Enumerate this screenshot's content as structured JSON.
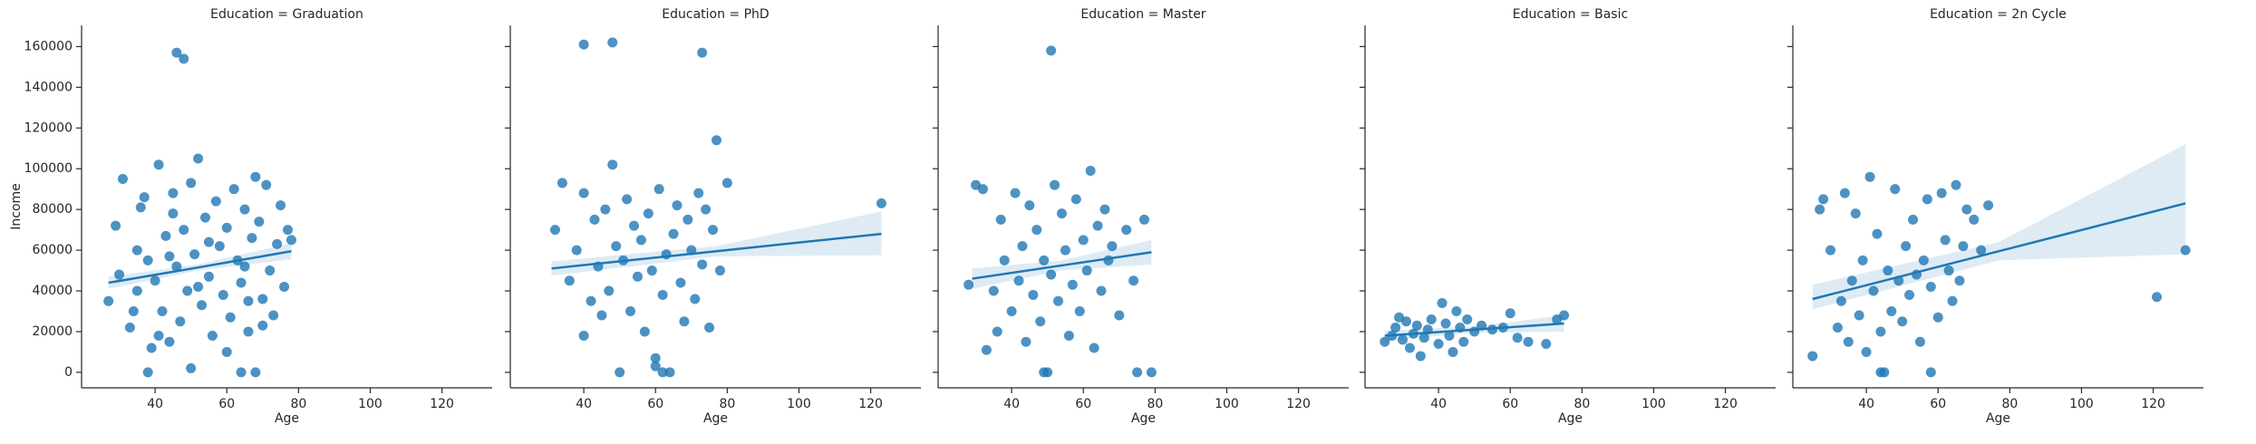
{
  "chart_data": [
    {
      "type": "scatter",
      "title": "Education = Graduation",
      "xlabel": "Age",
      "ylabel": "Income",
      "show_ytick_labels": true,
      "color": "#1f77b4",
      "x": [
        27,
        29,
        31,
        33,
        35,
        36,
        38,
        40,
        41,
        42,
        43,
        44,
        45,
        46,
        47,
        48,
        49,
        50,
        51,
        52,
        53,
        54,
        55,
        56,
        57,
        58,
        59,
        60,
        61,
        62,
        63,
        64,
        65,
        66,
        67,
        68,
        69,
        70,
        71,
        72,
        73,
        74,
        75,
        76,
        77,
        78,
        30,
        34,
        37,
        39,
        44,
        50,
        55,
        60,
        65,
        70,
        45,
        52,
        64,
        68,
        46,
        48,
        38,
        41,
        66,
        35
      ],
      "y": [
        35000,
        72000,
        95000,
        22000,
        60000,
        81000,
        0,
        45000,
        102000,
        30000,
        67000,
        15000,
        88000,
        52000,
        25000,
        70000,
        40000,
        93000,
        58000,
        105000,
        33000,
        76000,
        47000,
        18000,
        84000,
        62000,
        38000,
        71000,
        27000,
        90000,
        55000,
        44000,
        80000,
        20000,
        66000,
        0,
        74000,
        36000,
        92000,
        50000,
        28000,
        63000,
        82000,
        42000,
        70000,
        65000,
        48000,
        30000,
        86000,
        12000,
        57000,
        2000,
        64000,
        10000,
        52000,
        23000,
        78000,
        42000,
        0,
        96000,
        157000,
        154000,
        55000,
        18000,
        35000,
        40000
      ],
      "fit": {
        "x": [
          27,
          52,
          78
        ],
        "y": [
          44000,
          51500,
          59500
        ],
        "ci_lower": [
          41000,
          50000,
          55500
        ],
        "ci_upper": [
          47000,
          53000,
          63500
        ]
      },
      "xlim": [
        19.5,
        134
      ],
      "ylim": [
        -7600,
        170400
      ],
      "xticks": [
        40,
        60,
        80,
        100,
        120
      ],
      "yticks": [
        0,
        20000,
        40000,
        60000,
        80000,
        100000,
        120000,
        140000,
        160000
      ]
    },
    {
      "type": "scatter",
      "title": "Education = PhD",
      "xlabel": "Age",
      "show_ytick_labels": false,
      "color": "#1f77b4",
      "x": [
        32,
        34,
        36,
        38,
        40,
        40,
        42,
        43,
        44,
        45,
        46,
        47,
        48,
        49,
        50,
        51,
        52,
        53,
        54,
        55,
        56,
        57,
        58,
        59,
        60,
        61,
        62,
        63,
        64,
        65,
        66,
        67,
        68,
        69,
        70,
        71,
        72,
        73,
        74,
        75,
        76,
        78,
        80,
        123,
        40,
        48,
        73,
        77,
        60,
        62
      ],
      "y": [
        70000,
        93000,
        45000,
        60000,
        88000,
        18000,
        35000,
        75000,
        52000,
        28000,
        80000,
        40000,
        102000,
        62000,
        0,
        55000,
        85000,
        30000,
        72000,
        47000,
        65000,
        20000,
        78000,
        50000,
        7000,
        90000,
        38000,
        58000,
        0,
        68000,
        82000,
        44000,
        25000,
        75000,
        60000,
        36000,
        88000,
        53000,
        80000,
        22000,
        70000,
        50000,
        93000,
        83000,
        161000,
        162000,
        157000,
        114000,
        3000,
        0
      ],
      "fit": {
        "x": [
          31,
          77,
          123
        ],
        "y": [
          51000,
          59500,
          68000
        ],
        "ci_lower": [
          47500,
          57000,
          57500
        ],
        "ci_upper": [
          54500,
          62000,
          79000
        ]
      },
      "xlim": [
        19.5,
        134
      ],
      "ylim": [
        -7600,
        170400
      ],
      "xticks": [
        40,
        60,
        80,
        100,
        120
      ],
      "yticks": [
        0,
        20000,
        40000,
        60000,
        80000,
        100000,
        120000,
        140000,
        160000
      ]
    },
    {
      "type": "scatter",
      "title": "Education = Master",
      "xlabel": "Age",
      "show_ytick_labels": false,
      "color": "#1f77b4",
      "x": [
        28,
        30,
        32,
        33,
        35,
        36,
        37,
        38,
        40,
        41,
        42,
        43,
        44,
        45,
        46,
        47,
        48,
        49,
        50,
        51,
        52,
        53,
        54,
        55,
        56,
        57,
        58,
        59,
        60,
        61,
        62,
        63,
        64,
        65,
        66,
        67,
        68,
        70,
        72,
        74,
        75,
        77,
        79,
        51,
        49
      ],
      "y": [
        43000,
        92000,
        90000,
        11000,
        40000,
        20000,
        75000,
        55000,
        30000,
        88000,
        45000,
        62000,
        15000,
        82000,
        38000,
        70000,
        25000,
        55000,
        0,
        48000,
        92000,
        35000,
        78000,
        60000,
        18000,
        43000,
        85000,
        30000,
        65000,
        50000,
        99000,
        12000,
        72000,
        40000,
        80000,
        55000,
        62000,
        28000,
        70000,
        45000,
        0,
        75000,
        0,
        158000,
        0
      ],
      "fit": {
        "x": [
          29,
          54,
          79
        ],
        "y": [
          46000,
          52500,
          59000
        ],
        "ci_lower": [
          41000,
          50000,
          53000
        ],
        "ci_upper": [
          51000,
          55000,
          65000
        ]
      },
      "xlim": [
        19.5,
        134
      ],
      "ylim": [
        -7600,
        170400
      ],
      "xticks": [
        40,
        60,
        80,
        100,
        120
      ],
      "yticks": [
        0,
        20000,
        40000,
        60000,
        80000,
        100000,
        120000,
        140000,
        160000
      ]
    },
    {
      "type": "scatter",
      "title": "Education = Basic",
      "xlabel": "Age",
      "show_ytick_labels": false,
      "color": "#1f77b4",
      "x": [
        25,
        27,
        28,
        29,
        30,
        31,
        32,
        33,
        34,
        35,
        36,
        37,
        38,
        40,
        41,
        42,
        43,
        44,
        45,
        46,
        47,
        48,
        50,
        52,
        55,
        58,
        60,
        62,
        65,
        70,
        73,
        75
      ],
      "y": [
        15000,
        18000,
        22000,
        27000,
        16000,
        25000,
        12000,
        19000,
        23000,
        8000,
        17000,
        21000,
        26000,
        14000,
        34000,
        24000,
        18000,
        10000,
        30000,
        22000,
        15000,
        26000,
        20000,
        23000,
        21000,
        22000,
        29000,
        17000,
        15000,
        14000,
        26000,
        28000
      ],
      "fit": {
        "x": [
          25,
          50,
          75
        ],
        "y": [
          18000,
          21000,
          24000
        ],
        "ci_lower": [
          15500,
          19500,
          20000
        ],
        "ci_upper": [
          20500,
          22500,
          28000
        ]
      },
      "xlim": [
        19.5,
        134
      ],
      "ylim": [
        -7600,
        170400
      ],
      "xticks": [
        40,
        60,
        80,
        100,
        120
      ],
      "yticks": [
        0,
        20000,
        40000,
        60000,
        80000,
        100000,
        120000,
        140000,
        160000
      ]
    },
    {
      "type": "scatter",
      "title": "Education = 2n Cycle",
      "xlabel": "Age",
      "show_ytick_labels": false,
      "color": "#1f77b4",
      "x": [
        25,
        27,
        28,
        30,
        32,
        33,
        34,
        35,
        36,
        37,
        38,
        39,
        40,
        41,
        42,
        43,
        44,
        45,
        46,
        47,
        48,
        49,
        50,
        51,
        52,
        53,
        54,
        55,
        56,
        57,
        58,
        60,
        61,
        62,
        63,
        64,
        65,
        66,
        67,
        68,
        70,
        72,
        74,
        121,
        129,
        58,
        44
      ],
      "y": [
        8000,
        80000,
        85000,
        60000,
        22000,
        35000,
        88000,
        15000,
        45000,
        78000,
        28000,
        55000,
        10000,
        96000,
        40000,
        68000,
        20000,
        0,
        50000,
        30000,
        90000,
        45000,
        25000,
        62000,
        38000,
        75000,
        48000,
        15000,
        55000,
        85000,
        42000,
        27000,
        88000,
        65000,
        50000,
        35000,
        92000,
        45000,
        62000,
        80000,
        75000,
        60000,
        82000,
        37000,
        60000,
        0,
        0
      ],
      "fit": {
        "x": [
          25,
          77,
          129
        ],
        "y": [
          36000,
          59500,
          83000
        ],
        "ci_lower": [
          31000,
          55000,
          58000
        ],
        "ci_upper": [
          43000,
          64000,
          112000
        ]
      },
      "xlim": [
        19.5,
        134
      ],
      "ylim": [
        -7600,
        170400
      ],
      "xticks": [
        40,
        60,
        80,
        100,
        120
      ],
      "yticks": [
        0,
        20000,
        40000,
        60000,
        80000,
        100000,
        120000,
        140000,
        160000
      ]
    }
  ]
}
